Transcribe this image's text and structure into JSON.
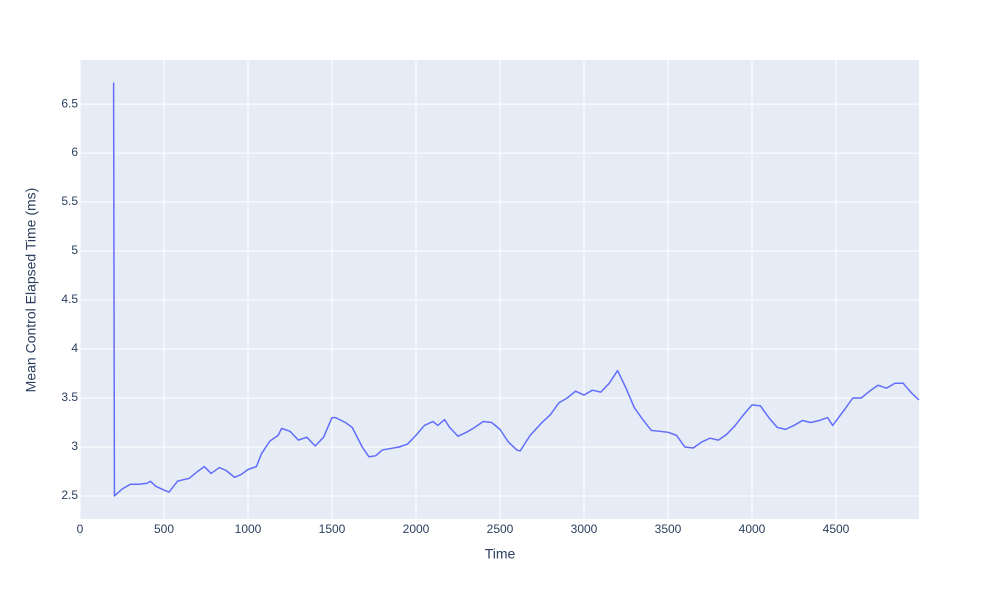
{
  "chart_data": {
    "type": "line",
    "x_label": "Time",
    "y_label": "Mean Control Elapsed Time (ms)",
    "x": [
      200,
      205,
      250,
      300,
      350,
      400,
      420,
      450,
      500,
      530,
      580,
      600,
      650,
      700,
      740,
      780,
      830,
      870,
      920,
      960,
      1000,
      1050,
      1080,
      1130,
      1180,
      1200,
      1250,
      1300,
      1350,
      1400,
      1450,
      1500,
      1520,
      1580,
      1620,
      1680,
      1720,
      1760,
      1800,
      1900,
      1950,
      2000,
      2050,
      2100,
      2130,
      2170,
      2200,
      2250,
      2300,
      2350,
      2400,
      2450,
      2500,
      2550,
      2600,
      2620,
      2680,
      2750,
      2800,
      2850,
      2900,
      2950,
      3000,
      3050,
      3100,
      3150,
      3200,
      3250,
      3300,
      3350,
      3400,
      3450,
      3500,
      3550,
      3600,
      3650,
      3700,
      3750,
      3800,
      3850,
      3900,
      3950,
      4000,
      4050,
      4100,
      4150,
      4200,
      4250,
      4300,
      4350,
      4400,
      4450,
      4480,
      4550,
      4600,
      4650,
      4700,
      4750,
      4800,
      4850,
      4900,
      4950,
      4994
    ],
    "series": [
      {
        "color": "#636efa",
        "values": [
          6.72,
          2.5,
          2.57,
          2.62,
          2.62,
          2.63,
          2.65,
          2.6,
          2.56,
          2.54,
          2.65,
          2.66,
          2.68,
          2.75,
          2.8,
          2.73,
          2.79,
          2.76,
          2.69,
          2.72,
          2.77,
          2.8,
          2.93,
          3.06,
          3.12,
          3.19,
          3.16,
          3.07,
          3.1,
          3.01,
          3.1,
          3.3,
          3.3,
          3.25,
          3.2,
          3.0,
          2.9,
          2.91,
          2.97,
          3.0,
          3.03,
          3.12,
          3.22,
          3.26,
          3.22,
          3.28,
          3.2,
          3.11,
          3.15,
          3.2,
          3.26,
          3.25,
          3.18,
          3.05,
          2.97,
          2.96,
          3.12,
          3.25,
          3.33,
          3.45,
          3.5,
          3.57,
          3.53,
          3.58,
          3.56,
          3.65,
          3.78,
          3.6,
          3.4,
          3.28,
          3.17,
          3.16,
          3.15,
          3.12,
          3.0,
          2.99,
          3.05,
          3.09,
          3.07,
          3.13,
          3.22,
          3.33,
          3.43,
          3.42,
          3.3,
          3.2,
          3.18,
          3.22,
          3.27,
          3.25,
          3.27,
          3.3,
          3.22,
          3.38,
          3.5,
          3.5,
          3.57,
          3.63,
          3.6,
          3.65,
          3.65,
          3.55,
          3.48
        ]
      }
    ],
    "xlim": [
      0,
      4994
    ],
    "ylim": [
      2.265,
      6.95
    ],
    "xticks": [
      0,
      500,
      1000,
      1500,
      2000,
      2500,
      3000,
      3500,
      4000,
      4500
    ],
    "yticks": [
      2.5,
      3,
      3.5,
      4,
      4.5,
      5,
      5.5,
      6,
      6.5
    ],
    "grid": true
  }
}
